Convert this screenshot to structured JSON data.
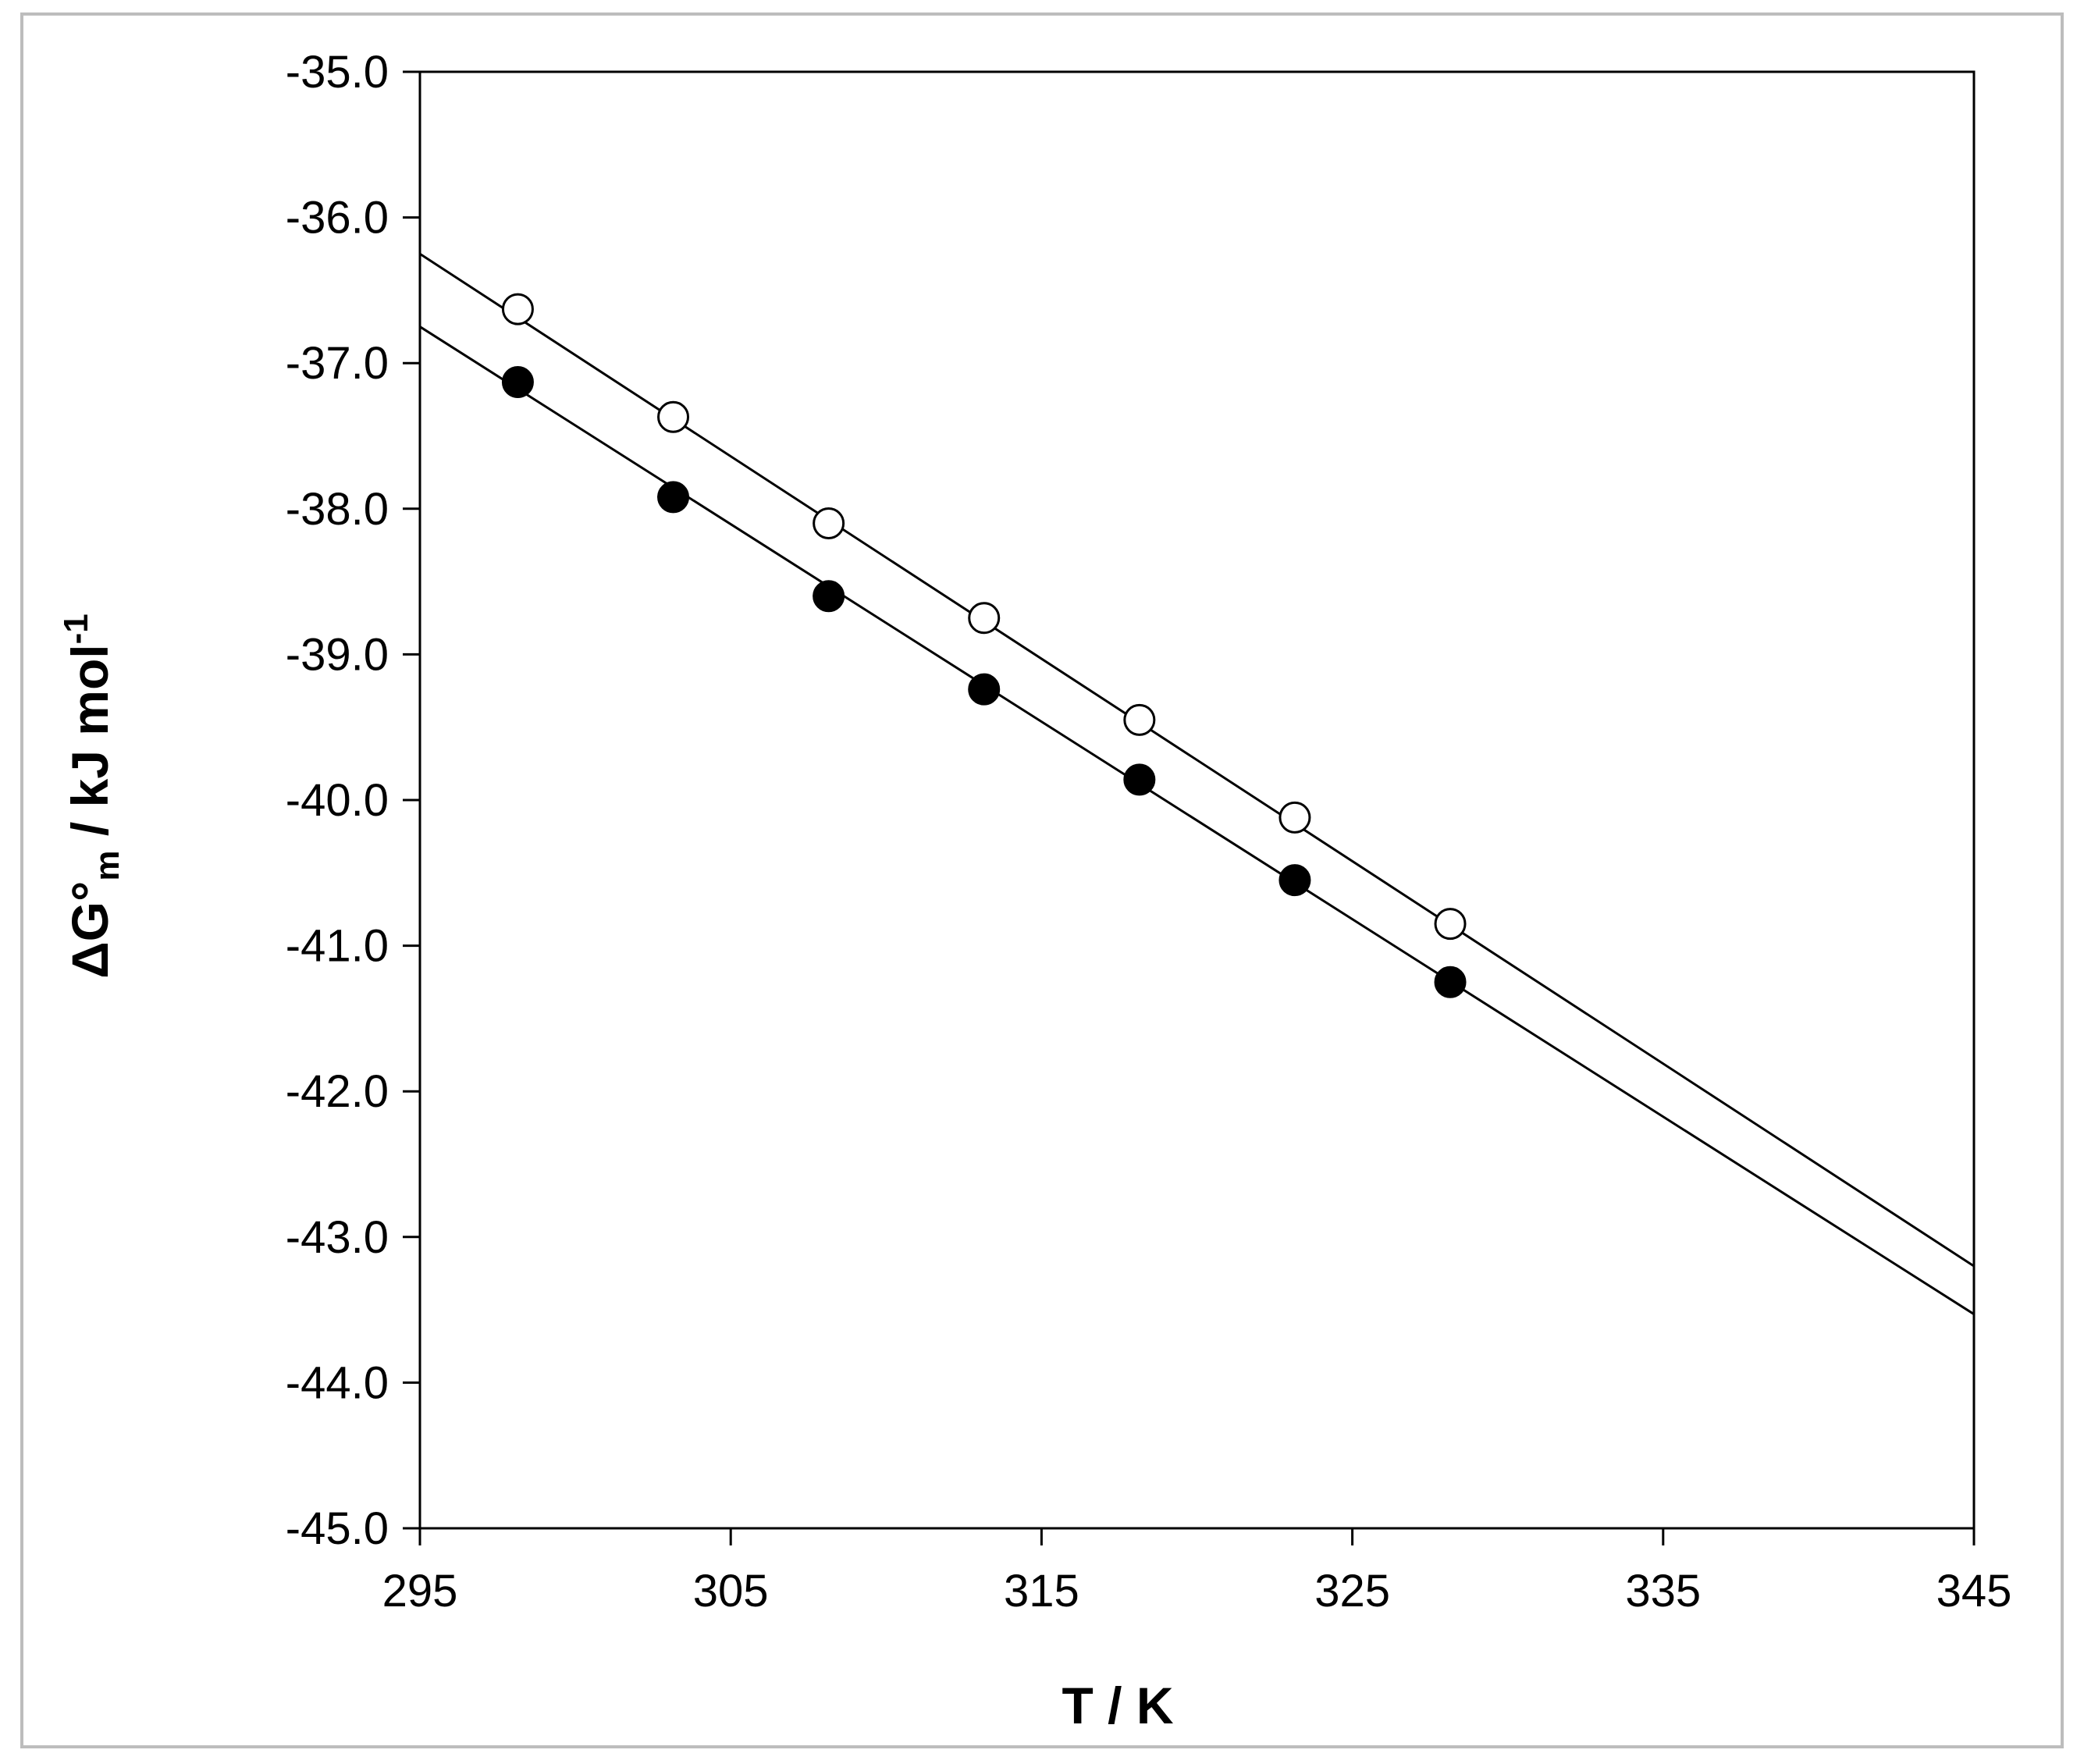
{
  "chart_data": {
    "type": "scatter",
    "xlabel": "T / K",
    "ylabel": {
      "prefix": "ΔG°",
      "sub": "m",
      "middle": " / kJ mol",
      "sup": "-1"
    },
    "xlim": [
      295,
      345
    ],
    "ylim": [
      -45.0,
      -35.0
    ],
    "x_ticks": [
      "295",
      "305",
      "315",
      "325",
      "335",
      "345"
    ],
    "y_ticks": [
      "-35.0",
      "-36.0",
      "-37.0",
      "-38.0",
      "-39.0",
      "-40.0",
      "-41.0",
      "-42.0",
      "-43.0",
      "-44.0",
      "-45.0"
    ],
    "grid": false,
    "legend": "none",
    "series": [
      {
        "marker": "open-circle",
        "x": [
          298.15,
          303.15,
          308.15,
          313.15,
          318.15,
          323.15,
          328.15
        ],
        "y": [
          -36.63,
          -37.37,
          -38.1,
          -38.75,
          -39.45,
          -40.12,
          -40.85
        ],
        "fit_line": {
          "x": [
            295,
            345
          ],
          "y": [
            -36.25,
            -43.2
          ]
        }
      },
      {
        "marker": "filled-circle",
        "x": [
          298.15,
          303.15,
          308.15,
          313.15,
          318.15,
          323.15,
          328.15
        ],
        "y": [
          -37.13,
          -37.92,
          -38.6,
          -39.24,
          -39.86,
          -40.55,
          -41.25
        ],
        "fit_line": {
          "x": [
            295,
            345
          ],
          "y": [
            -36.75,
            -43.53
          ]
        }
      }
    ],
    "colors": {
      "axis": "#000000",
      "line": "#000000",
      "marker_fill": "#000000",
      "marker_open_fill": "#ffffff",
      "frame": "#bdbdbd"
    }
  }
}
